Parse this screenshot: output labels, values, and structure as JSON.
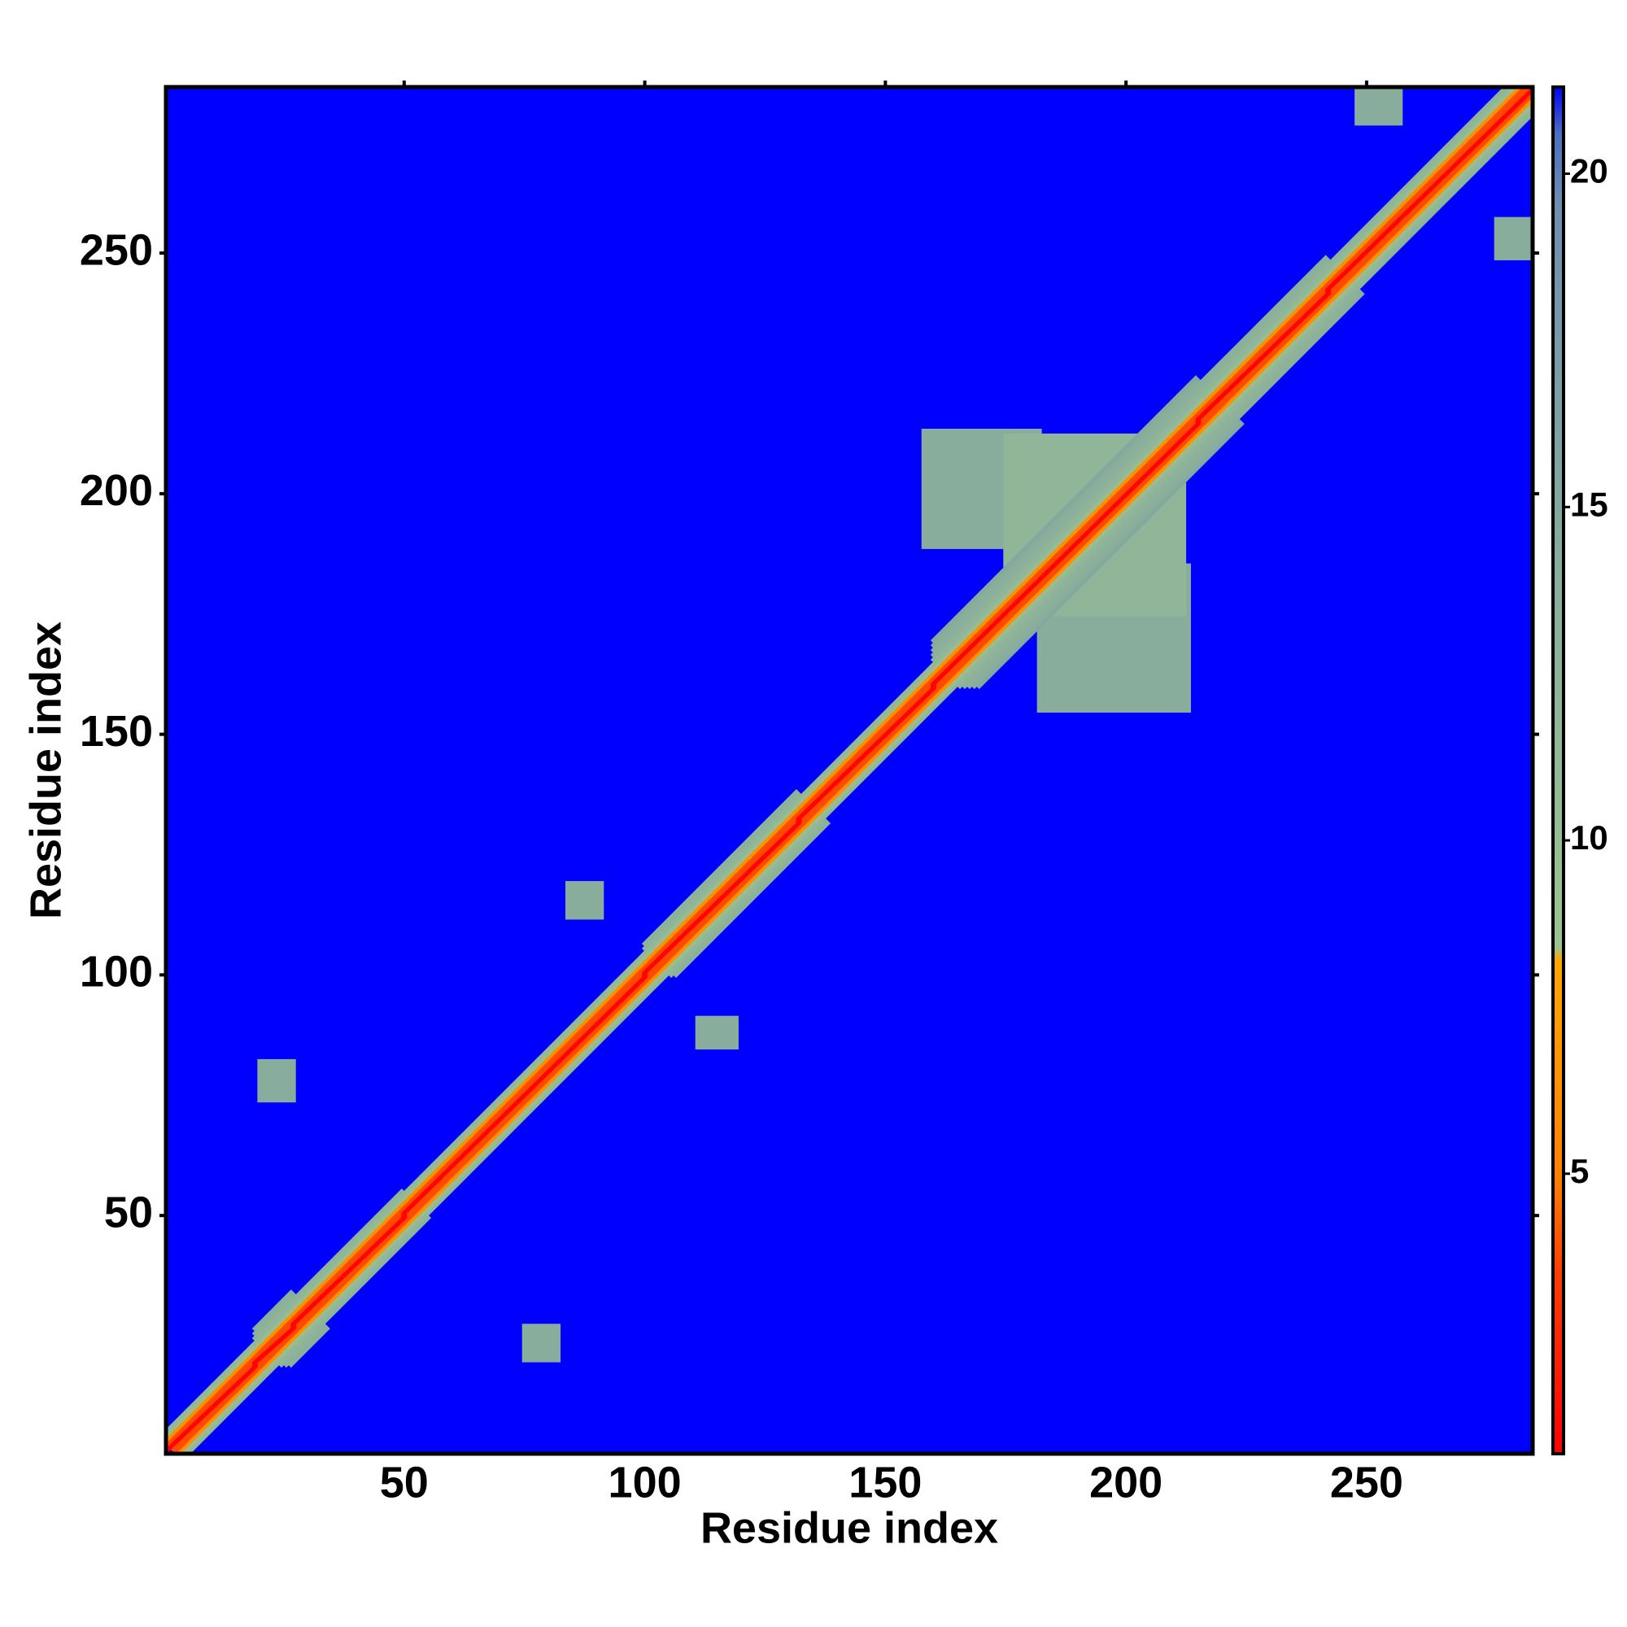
{
  "chart_data": {
    "type": "heatmap",
    "xlabel": "Residue index",
    "ylabel": "Residue index",
    "xlim": [
      0.5,
      284.5
    ],
    "ylim": [
      0.5,
      284.5
    ],
    "xticks": [
      50,
      100,
      150,
      200,
      250
    ],
    "yticks": [
      50,
      100,
      150,
      200,
      250
    ],
    "clim": [
      0.8,
      21.3
    ],
    "cticks": [
      5,
      10,
      15,
      20
    ],
    "colormap": [
      {
        "value": 0.8,
        "color": "#ff0000"
      },
      {
        "value": 3.5,
        "color": "#ff3c00"
      },
      {
        "value": 5,
        "color": "#ff8000"
      },
      {
        "value": 8.2,
        "color": "#ffa500"
      },
      {
        "value": 8.4,
        "color": "#9cc490"
      },
      {
        "value": 14,
        "color": "#89ad9c"
      },
      {
        "value": 19.5,
        "color": "#6f8fb0"
      },
      {
        "value": 20.6,
        "color": "#4a6fc0"
      },
      {
        "value": 21.3,
        "color": "#0000ff"
      }
    ],
    "background": 21.3,
    "diagonal_profile": [
      1,
      3.8,
      6.5,
      10,
      11.5,
      12.5,
      13,
      13.5,
      14,
      15
    ],
    "segments": [
      {
        "range": [
          1,
          19
        ],
        "width": 4
      },
      {
        "range": [
          19,
          27
        ],
        "width": 7
      },
      {
        "range": [
          27,
          50
        ],
        "width": 5
      },
      {
        "range": [
          50,
          100
        ],
        "width": 4
      },
      {
        "range": [
          100,
          132
        ],
        "width": 6
      },
      {
        "range": [
          132,
          160
        ],
        "width": 4
      },
      {
        "range": [
          160,
          215
        ],
        "width": 9
      },
      {
        "range": [
          215,
          242
        ],
        "width": 7
      },
      {
        "range": [
          242,
          284
        ],
        "width": 5
      }
    ],
    "patches": [
      {
        "x": [
          158,
          182
        ],
        "y": [
          189,
          213
        ],
        "value": 14
      },
      {
        "x": [
          182,
          213
        ],
        "y": [
          155,
          185
        ],
        "value": 14
      },
      {
        "x": [
          175,
          212
        ],
        "y": [
          175,
          212
        ],
        "value": 12
      },
      {
        "x": [
          20,
          27
        ],
        "y": [
          74,
          82
        ],
        "value": 14
      },
      {
        "x": [
          75,
          82
        ],
        "y": [
          20,
          27
        ],
        "value": 14
      },
      {
        "x": [
          84,
          91
        ],
        "y": [
          112,
          119
        ],
        "value": 14
      },
      {
        "x": [
          111,
          119
        ],
        "y": [
          85,
          91
        ],
        "value": 14
      },
      {
        "x": [
          277,
          284
        ],
        "y": [
          249,
          257
        ],
        "value": 14
      },
      {
        "x": [
          248,
          257
        ],
        "y": [
          277,
          284
        ],
        "value": 14
      }
    ]
  }
}
